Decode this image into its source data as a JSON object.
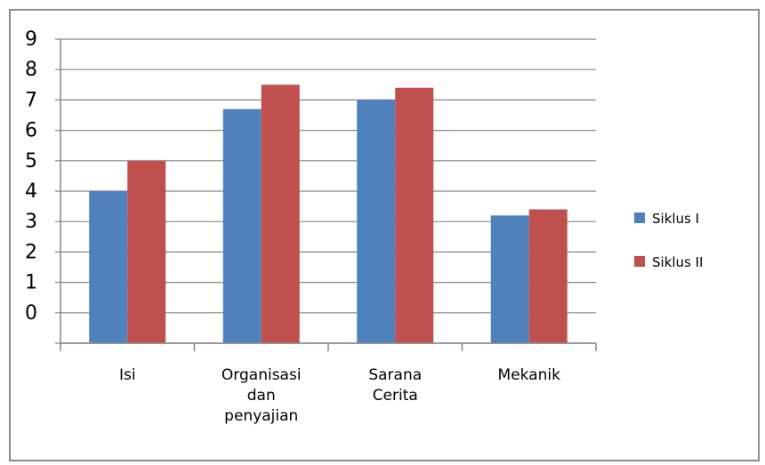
{
  "chart_data": {
    "type": "bar",
    "categories": [
      [
        "Isi"
      ],
      [
        "Organisasi",
        "dan",
        "penyajian"
      ],
      [
        "Sarana",
        "Cerita"
      ],
      [
        "Mekanik"
      ]
    ],
    "series": [
      {
        "name": "Siklus I",
        "color": "#4f81bd",
        "values": [
          4.0,
          6.7,
          7.0,
          3.2
        ]
      },
      {
        "name": "Siklus II",
        "color": "#c0504d",
        "values": [
          5.0,
          7.5,
          7.4,
          3.4
        ]
      }
    ],
    "y_tick_labels": [
      "9",
      "8",
      "7",
      "6",
      "5",
      "4",
      "3",
      "2",
      "1",
      "0"
    ],
    "ylim": [
      -1,
      9
    ],
    "grid": true,
    "legend_position": "right"
  }
}
